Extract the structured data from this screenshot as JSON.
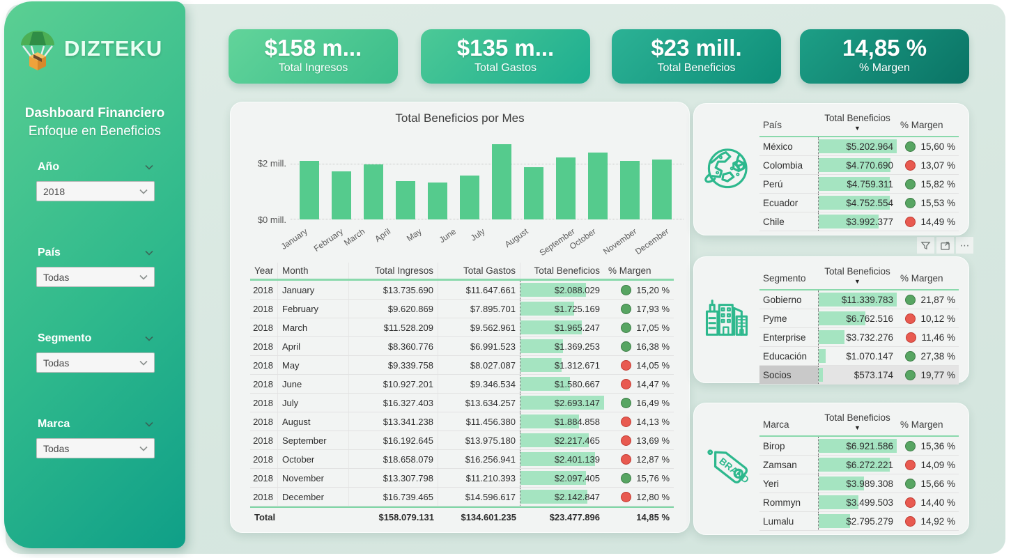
{
  "sidebar": {
    "logo_text": "DIZTEKU",
    "title_line1": "Dashboard Financiero",
    "title_line2": "Enfoque en Beneficios",
    "filters": [
      {
        "label": "Año",
        "value": "2018"
      },
      {
        "label": "País",
        "value": "Todas"
      },
      {
        "label": "Segmento",
        "value": "Todas"
      },
      {
        "label": "Marca",
        "value": "Todas"
      }
    ]
  },
  "kpi_cards": [
    {
      "value": "$158 m...",
      "label": "Total Ingresos"
    },
    {
      "value": "$135 m...",
      "label": "Total Gastos"
    },
    {
      "value": "$23 mill.",
      "label": "Total Beneficios"
    },
    {
      "value": "14,85 %",
      "label": "% Margen"
    }
  ],
  "chart_data": {
    "type": "bar",
    "title": "Total Beneficios por Mes",
    "categories": [
      "January",
      "February",
      "March",
      "April",
      "May",
      "June",
      "July",
      "August",
      "September",
      "October",
      "November",
      "December"
    ],
    "values": [
      2088029,
      1725169,
      1965247,
      1369253,
      1312671,
      1580667,
      2693147,
      1884858,
      2217465,
      2401139,
      2097405,
      2142847
    ],
    "ylabel": "",
    "xlabel": "",
    "y_ticks": [
      "$2 mill.",
      "$0 mill."
    ],
    "ylim": [
      0,
      2800000
    ],
    "bar_color": "#55cb8d",
    "grid": "dotted"
  },
  "main_table": {
    "columns": [
      "Year",
      "Month",
      "Total Ingresos",
      "Total Gastos",
      "Total Beneficios",
      "% Margen"
    ],
    "rows": [
      {
        "year": "2018",
        "month": "January",
        "ingresos": "$13.735.690",
        "gastos": "$11.647.661",
        "beneficios": "$2.088.029",
        "margen": "15,20 %",
        "status": "green"
      },
      {
        "year": "2018",
        "month": "February",
        "ingresos": "$9.620.869",
        "gastos": "$7.895.701",
        "beneficios": "$1.725.169",
        "margen": "17,93 %",
        "status": "green"
      },
      {
        "year": "2018",
        "month": "March",
        "ingresos": "$11.528.209",
        "gastos": "$9.562.961",
        "beneficios": "$1.965.247",
        "margen": "17,05 %",
        "status": "green"
      },
      {
        "year": "2018",
        "month": "April",
        "ingresos": "$8.360.776",
        "gastos": "$6.991.523",
        "beneficios": "$1.369.253",
        "margen": "16,38 %",
        "status": "green"
      },
      {
        "year": "2018",
        "month": "May",
        "ingresos": "$9.339.758",
        "gastos": "$8.027.087",
        "beneficios": "$1.312.671",
        "margen": "14,05 %",
        "status": "red"
      },
      {
        "year": "2018",
        "month": "June",
        "ingresos": "$10.927.201",
        "gastos": "$9.346.534",
        "beneficios": "$1.580.667",
        "margen": "14,47 %",
        "status": "red"
      },
      {
        "year": "2018",
        "month": "July",
        "ingresos": "$16.327.403",
        "gastos": "$13.634.257",
        "beneficios": "$2.693.147",
        "margen": "16,49 %",
        "status": "green"
      },
      {
        "year": "2018",
        "month": "August",
        "ingresos": "$13.341.238",
        "gastos": "$11.456.380",
        "beneficios": "$1.884.858",
        "margen": "14,13 %",
        "status": "red"
      },
      {
        "year": "2018",
        "month": "September",
        "ingresos": "$16.192.645",
        "gastos": "$13.975.180",
        "beneficios": "$2.217.465",
        "margen": "13,69 %",
        "status": "red"
      },
      {
        "year": "2018",
        "month": "October",
        "ingresos": "$18.658.079",
        "gastos": "$16.256.941",
        "beneficios": "$2.401.139",
        "margen": "12,87 %",
        "status": "red"
      },
      {
        "year": "2018",
        "month": "November",
        "ingresos": "$13.307.798",
        "gastos": "$11.210.393",
        "beneficios": "$2.097.405",
        "margen": "15,76 %",
        "status": "green"
      },
      {
        "year": "2018",
        "month": "December",
        "ingresos": "$16.739.465",
        "gastos": "$14.596.617",
        "beneficios": "$2.142.847",
        "margen": "12,80 %",
        "status": "red"
      }
    ],
    "total": {
      "label": "Total",
      "ingresos": "$158.079.131",
      "gastos": "$134.601.235",
      "beneficios": "$23.477.896",
      "margen": "14,85 %"
    }
  },
  "panels": [
    {
      "icon": "globe-icon",
      "columns": [
        "País",
        "Total Beneficios",
        "% Margen"
      ],
      "rows": [
        {
          "name": "México",
          "beneficios": "$5.202.964",
          "margen": "15,60 %",
          "status": "green"
        },
        {
          "name": "Colombia",
          "beneficios": "$4.770.690",
          "margen": "13,07 %",
          "status": "red"
        },
        {
          "name": "Perú",
          "beneficios": "$4.759.311",
          "margen": "15,82 %",
          "status": "green"
        },
        {
          "name": "Ecuador",
          "beneficios": "$4.752.554",
          "margen": "15,53 %",
          "status": "green"
        },
        {
          "name": "Chile",
          "beneficios": "$3.992.377",
          "margen": "14,49 %",
          "status": "red"
        }
      ]
    },
    {
      "icon": "buildings-icon",
      "columns": [
        "Segmento",
        "Total Beneficios",
        "% Margen"
      ],
      "rows": [
        {
          "name": "Gobierno",
          "beneficios": "$11.339.783",
          "margen": "21,87 %",
          "status": "green"
        },
        {
          "name": "Pyme",
          "beneficios": "$6.762.516",
          "margen": "10,12 %",
          "status": "red"
        },
        {
          "name": "Enterprise",
          "beneficios": "$3.732.276",
          "margen": "11,46 %",
          "status": "red"
        },
        {
          "name": "Educación",
          "beneficios": "$1.070.147",
          "margen": "27,38 %",
          "status": "green"
        },
        {
          "name": "Socios",
          "beneficios": "$573.174",
          "margen": "19,77 %",
          "status": "green",
          "selected": true
        }
      ]
    },
    {
      "icon": "brand-tag-icon",
      "columns": [
        "Marca",
        "Total Beneficios",
        "% Margen"
      ],
      "rows": [
        {
          "name": "Birop",
          "beneficios": "$6.921.586",
          "margen": "15,36 %",
          "status": "green"
        },
        {
          "name": "Zamsan",
          "beneficios": "$6.272.221",
          "margen": "14,09 %",
          "status": "red"
        },
        {
          "name": "Yeri",
          "beneficios": "$3.989.308",
          "margen": "15,66 %",
          "status": "green"
        },
        {
          "name": "Rommyn",
          "beneficios": "$3.499.503",
          "margen": "14,40 %",
          "status": "red"
        },
        {
          "name": "Lumalu",
          "beneficios": "$2.795.279",
          "margen": "14,92 %",
          "status": "red"
        }
      ]
    }
  ],
  "toolbar": {
    "icons": [
      "filter-icon",
      "focus-mode-icon",
      "more-options-icon"
    ]
  }
}
